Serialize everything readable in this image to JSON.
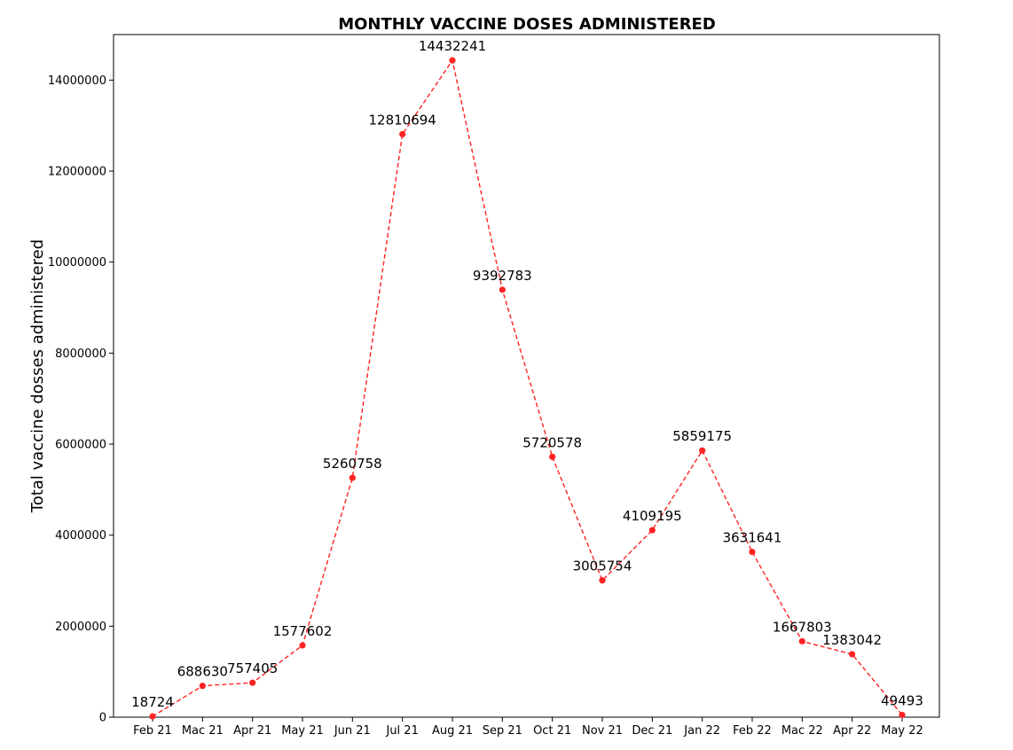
{
  "chart_data": {
    "type": "line",
    "title": "MONTHLY VACCINE DOSES ADMINISTERED",
    "xlabel": "",
    "ylabel": "Total vaccine dosses administered",
    "categories": [
      "Feb 21",
      "Mac 21",
      "Apr 21",
      "May 21",
      "Jun 21",
      "Jul 21",
      "Aug 21",
      "Sep 21",
      "Oct 21",
      "Nov 21",
      "Dec 21",
      "Jan 22",
      "Feb 22",
      "Mac 22",
      "Apr 22",
      "May 22"
    ],
    "values": [
      18724,
      688630,
      757405,
      1577602,
      5260758,
      12810694,
      14432241,
      9392783,
      5720578,
      3005754,
      4109195,
      5859175,
      3631641,
      1667803,
      1383042,
      49493
    ],
    "data_labels": [
      "18724",
      "688630",
      "757405",
      "1577602",
      "5260758",
      "12810694",
      "14432241",
      "9392783",
      "5720578",
      "3005754",
      "4109195",
      "5859175",
      "3631641",
      "1667803",
      "1383042",
      "49493"
    ],
    "y_ticks": [
      0,
      2000000,
      4000000,
      6000000,
      8000000,
      10000000,
      12000000,
      14000000
    ],
    "y_tick_labels": [
      "0",
      "2000000",
      "4000000",
      "6000000",
      "8000000",
      "10000000",
      "12000000",
      "14000000"
    ],
    "ylim": [
      0,
      15000000
    ],
    "line_style": "dashed",
    "marker": "circle",
    "color": "#ff2222",
    "grid": false,
    "legend": "none"
  }
}
